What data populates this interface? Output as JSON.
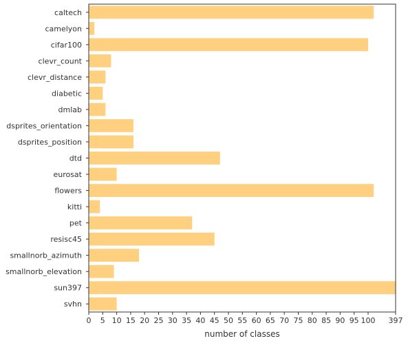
{
  "chart_data": {
    "type": "bar",
    "orientation": "horizontal",
    "xlabel": "number of classes",
    "ylabel": "",
    "bar_color": "#ffd080",
    "categories": [
      "caltech",
      "camelyon",
      "cifar100",
      "clevr_count",
      "clevr_distance",
      "diabetic",
      "dmlab",
      "dsprites_orientation",
      "dsprites_position",
      "dtd",
      "eurosat",
      "flowers",
      "kitti",
      "pet",
      "resisc45",
      "smallnorb_azimuth",
      "smallnorb_elevation",
      "sun397",
      "svhn"
    ],
    "values": [
      102,
      2,
      100,
      8,
      6,
      5,
      6,
      16,
      16,
      47,
      10,
      102,
      4,
      37,
      45,
      18,
      9,
      397,
      10
    ],
    "x_axis_break": {
      "linear_until": 105,
      "break_tick": 397
    },
    "x_ticks": [
      "0",
      "5",
      "10",
      "15",
      "20",
      "25",
      "30",
      "35",
      "40",
      "45",
      "50",
      "55",
      "60",
      "65",
      "70",
      "75",
      "80",
      "85",
      "90",
      "95",
      "100",
      "397"
    ],
    "grid": false
  }
}
